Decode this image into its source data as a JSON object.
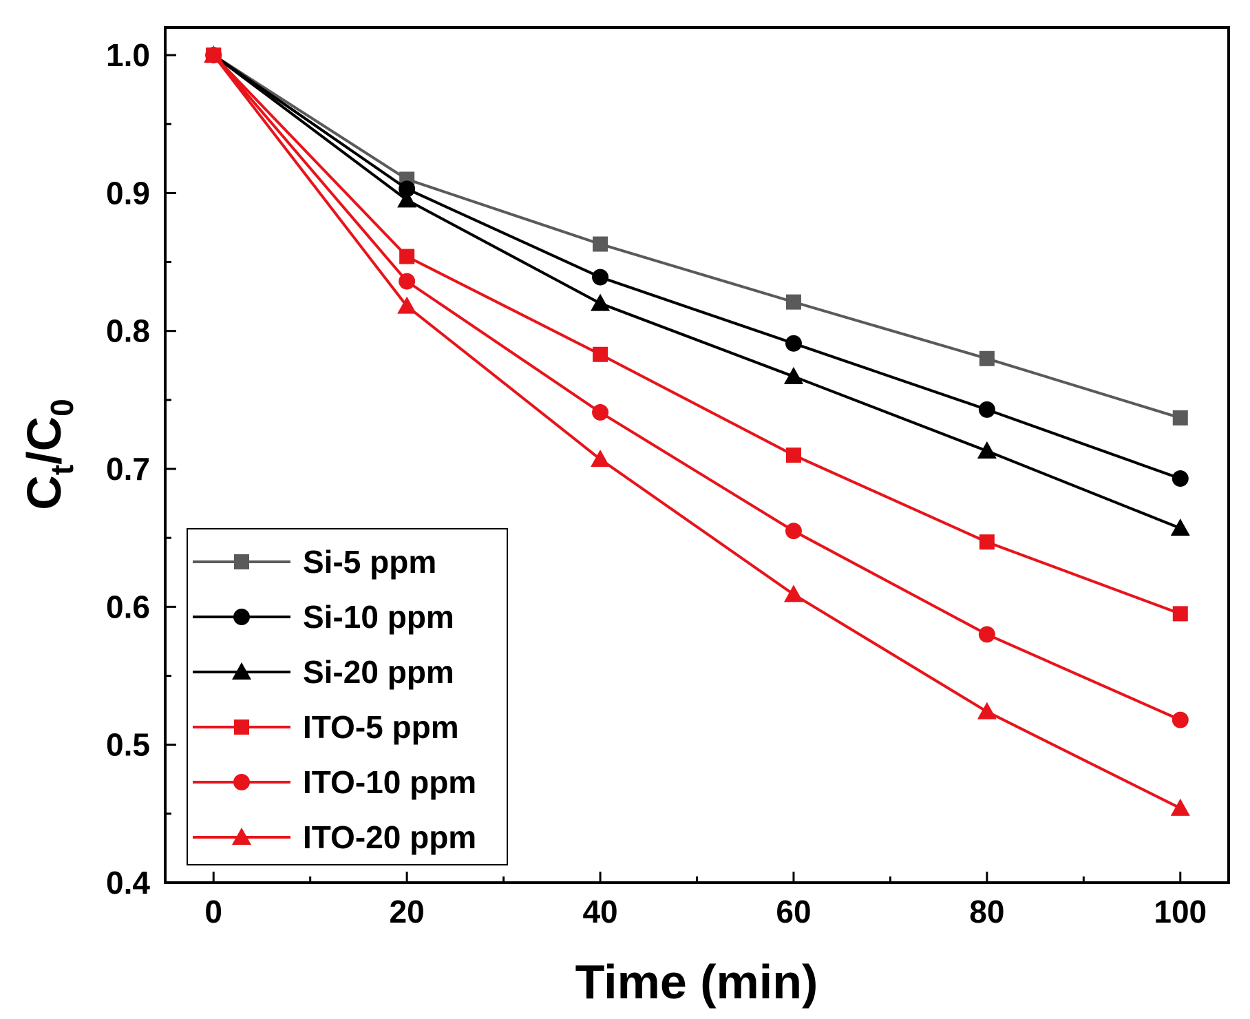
{
  "chart_data": {
    "type": "line",
    "title": "",
    "xlabel": "Time (min)",
    "ylabel": {
      "main": "C",
      "sub1": "t",
      "sep": "/C",
      "sub2": "0"
    },
    "xlim": [
      -5,
      105
    ],
    "ylim": [
      0.4,
      1.02
    ],
    "xticks": [
      0,
      20,
      40,
      60,
      80,
      100
    ],
    "yticks": [
      0.4,
      0.5,
      0.6,
      0.7,
      0.8,
      0.9,
      1.0
    ],
    "ytick_labels": [
      "0.4",
      "0.5",
      "0.6",
      "0.7",
      "0.8",
      "0.9",
      "1.0"
    ],
    "xminor": [
      10,
      30,
      50,
      70,
      90
    ],
    "yminor": [
      0.45,
      0.55,
      0.65,
      0.75,
      0.85,
      0.95
    ],
    "legend_position": "bottom-left",
    "x": [
      0,
      20,
      40,
      60,
      80,
      100
    ],
    "series": [
      {
        "name": "Si-5 ppm",
        "color": "#5a5a5a",
        "marker": "square",
        "values": [
          1.0,
          0.91,
          0.863,
          0.821,
          0.78,
          0.737
        ]
      },
      {
        "name": "Si-10 ppm",
        "color": "#000000",
        "marker": "circle",
        "values": [
          1.0,
          0.903,
          0.839,
          0.791,
          0.743,
          0.693
        ]
      },
      {
        "name": "Si-20 ppm",
        "color": "#000000",
        "marker": "triangle",
        "values": [
          1.0,
          0.895,
          0.82,
          0.767,
          0.713,
          0.657
        ]
      },
      {
        "name": "ITO-5 ppm",
        "color": "#e8141b",
        "marker": "square",
        "values": [
          1.0,
          0.854,
          0.783,
          0.71,
          0.647,
          0.595
        ]
      },
      {
        "name": "ITO-10 ppm",
        "color": "#e8141b",
        "marker": "circle",
        "values": [
          1.0,
          0.836,
          0.741,
          0.655,
          0.58,
          0.518
        ]
      },
      {
        "name": "ITO-20 ppm",
        "color": "#e8141b",
        "marker": "triangle",
        "values": [
          1.0,
          0.818,
          0.707,
          0.609,
          0.524,
          0.454
        ]
      }
    ]
  }
}
